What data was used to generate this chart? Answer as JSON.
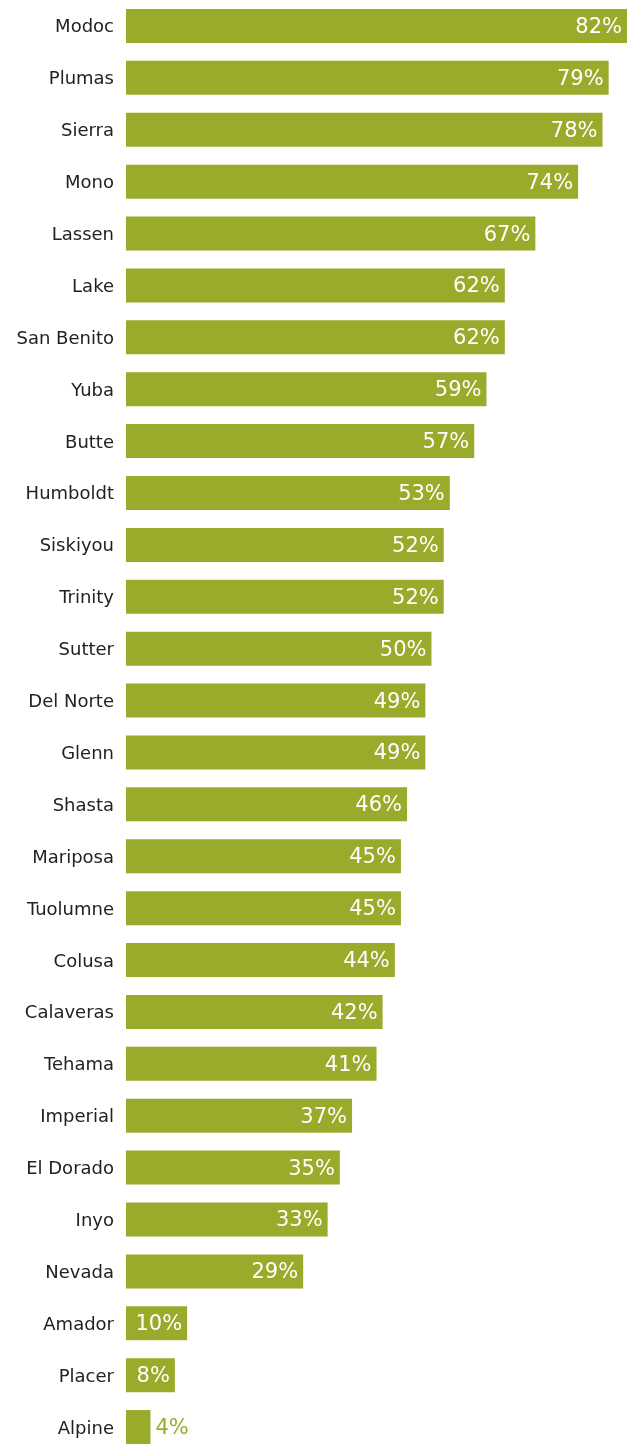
{
  "chart_data": {
    "type": "bar",
    "orientation": "horizontal",
    "categories": [
      "Modoc",
      "Plumas",
      "Sierra",
      "Mono",
      "Lassen",
      "Lake",
      "San Benito",
      "Yuba",
      "Butte",
      "Humboldt",
      "Siskiyou",
      "Trinity",
      "Sutter",
      "Del Norte",
      "Glenn",
      "Shasta",
      "Mariposa",
      "Tuolumne",
      "Colusa",
      "Calaveras",
      "Tehama",
      "Imperial",
      "El Dorado",
      "Inyo",
      "Nevada",
      "Amador",
      "Placer",
      "Alpine"
    ],
    "values": [
      82,
      79,
      78,
      74,
      67,
      62,
      62,
      59,
      57,
      53,
      52,
      52,
      50,
      49,
      49,
      46,
      45,
      45,
      44,
      42,
      41,
      37,
      35,
      33,
      29,
      10,
      8,
      4
    ],
    "value_labels": [
      "82%",
      "79%",
      "78%",
      "74%",
      "67%",
      "62%",
      "62%",
      "59%",
      "57%",
      "53%",
      "52%",
      "52%",
      "50%",
      "49%",
      "49%",
      "46%",
      "45%",
      "45%",
      "44%",
      "42%",
      "41%",
      "37%",
      "35%",
      "33%",
      "29%",
      "10%",
      "8%",
      "4%"
    ],
    "color": "#9aaa2a"
  }
}
